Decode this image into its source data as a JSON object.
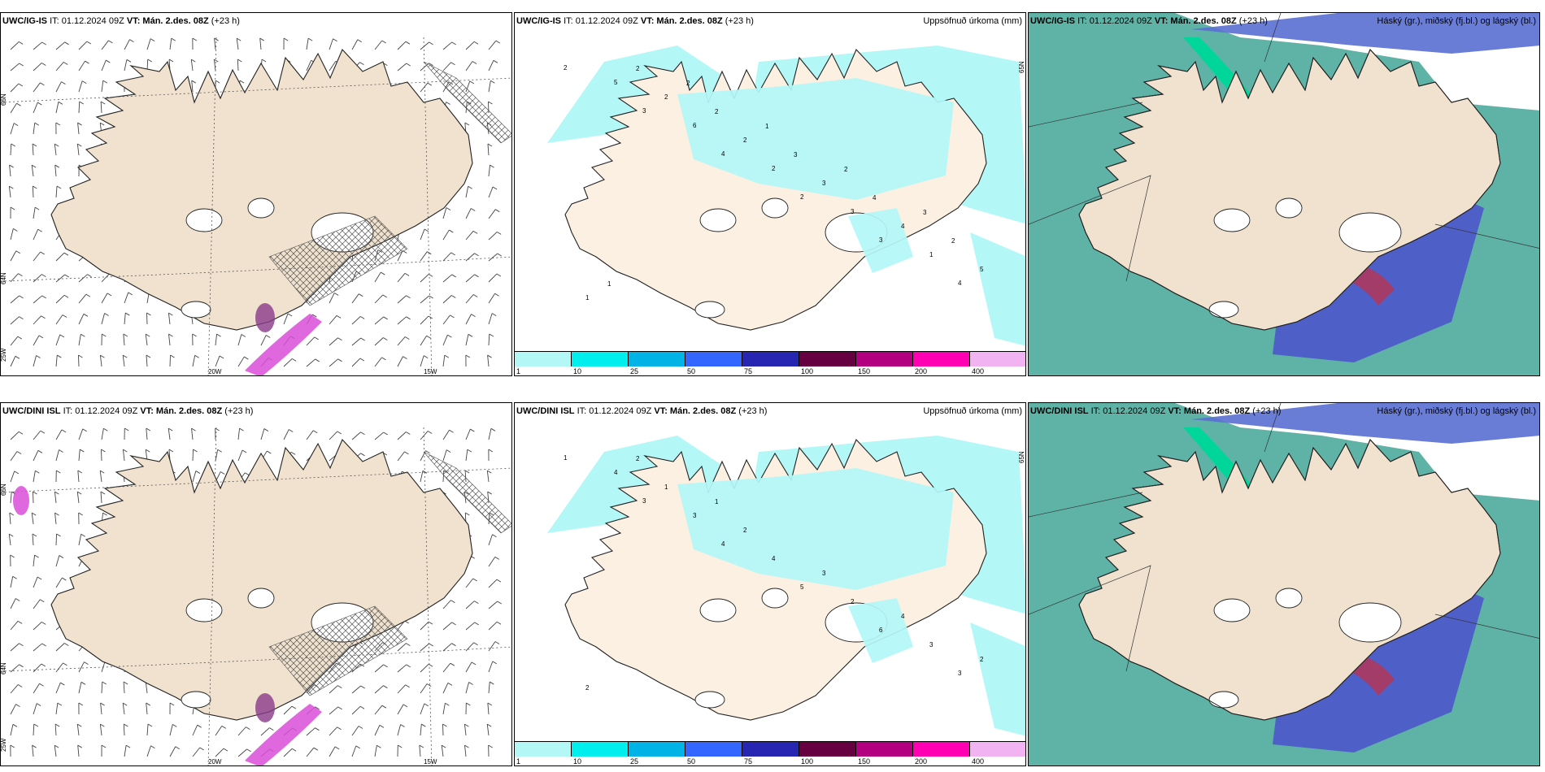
{
  "panels": [
    {
      "model": "UWC/IG-IS",
      "it": "IT: 01.12.2024 09Z",
      "vt_label": "VT:",
      "vt": "Mán. 2.des. 08Z",
      "lead": "(+23 h)",
      "right": "",
      "kind": "wind"
    },
    {
      "model": "UWC/IG-IS",
      "it": "IT: 01.12.2024 09Z",
      "vt_label": "VT:",
      "vt": "Mán. 2.des. 08Z",
      "lead": "(+23 h)",
      "right": "Uppsöfnuð úrkoma (mm)",
      "kind": "precip"
    },
    {
      "model": "UWC/IG-IS",
      "it": "IT: 01.12.2024 09Z",
      "vt_label": "VT:",
      "vt": "Mán. 2.des. 08Z",
      "lead": "(+23 h)",
      "right": "Háský (gr.), miðský (fj.bl.) og lágský (bl.)",
      "kind": "cloud"
    },
    {
      "model": "UWC/DINI ISL",
      "it": "IT: 01.12.2024 09Z",
      "vt_label": "VT:",
      "vt": "Mán. 2.des. 08Z",
      "lead": "(+23 h)",
      "right": "",
      "kind": "wind"
    },
    {
      "model": "UWC/DINI ISL",
      "it": "IT: 01.12.2024 09Z",
      "vt_label": "VT:",
      "vt": "Mán. 2.des. 08Z",
      "lead": "(+23 h)",
      "right": "Uppsöfnuð úrkoma (mm)",
      "kind": "precip"
    },
    {
      "model": "UWC/DINI ISL",
      "it": "IT: 01.12.2024 09Z",
      "vt_label": "VT:",
      "vt": "Mán. 2.des. 08Z",
      "lead": "(+23 h)",
      "right": "Háský (gr.), miðský (fj.bl.) og lágský (bl.)",
      "kind": "cloud"
    }
  ],
  "grid_labels": {
    "lat66": "66N",
    "lat64": "64N",
    "lon25": "25W",
    "lon20": "20W",
    "lon15": "15W",
    "lat65": "65N"
  },
  "colorbar": {
    "levels": [
      "1",
      "10",
      "25",
      "50",
      "75",
      "100",
      "150",
      "200",
      "400"
    ],
    "colors": [
      "#b3f7f7",
      "#00eeee",
      "#00b3e6",
      "#3366ff",
      "#2626b3",
      "#660040",
      "#b30080",
      "#ff00b3",
      "#f2b3f2"
    ]
  },
  "precip_values_top": [
    "2",
    "3",
    "4",
    "2",
    "3",
    "4",
    "5",
    "6",
    "2",
    "3",
    "1",
    "1",
    "2",
    "2",
    "3",
    "4",
    "5",
    "2",
    "2",
    "3",
    "4",
    "2",
    "1",
    "2",
    "1",
    "2",
    "3"
  ],
  "precip_values_bottom": [
    "1",
    "3",
    "4",
    "5",
    "6",
    "3",
    "4",
    "3",
    "4",
    "2",
    "3",
    "2",
    "1",
    "2",
    "3",
    "4",
    "2",
    "2",
    "1"
  ],
  "colors": {
    "land": "#f2e3d0",
    "precip_light": "#b3f7f7",
    "cloud_high": "#5fb3a6",
    "cloud_mid": "#5a6fd1",
    "cloud_low": "#4a4ad0",
    "accent_green": "#00d69a",
    "accent_magenta": "#d94dd9"
  }
}
